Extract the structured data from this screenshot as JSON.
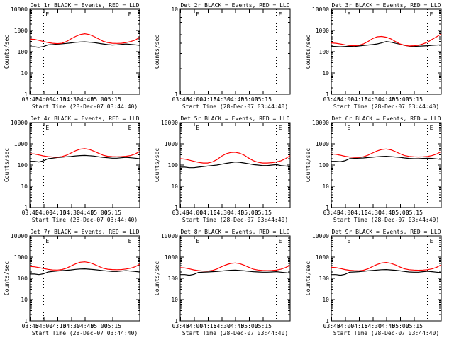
{
  "colors": {
    "events": "#000000",
    "lld": "#ff0000"
  },
  "common": {
    "xlabel": "Start Time (28-Dec-07 03:44:40)",
    "xticks": [
      "03:45",
      "04:00",
      "04:15",
      "04:30",
      "04:45",
      "05:00",
      "05:15"
    ],
    "ylabel": "Counts/sec",
    "event_markers_min": [
      15,
      105
    ],
    "marker_symbol": "E"
  },
  "chart_data": [
    {
      "type": "line",
      "title": "Det 1r BLACK = Events, RED = LLD",
      "ylabel": "Counts/sec",
      "yscale": "log",
      "ylim": [
        1,
        10000
      ],
      "yticks": [
        "1",
        "10",
        "100",
        "1000",
        "10000"
      ],
      "x_min": [
        0,
        5,
        10,
        15,
        20,
        25,
        30,
        35,
        40,
        45,
        50,
        55,
        60,
        65,
        70,
        75,
        80,
        85,
        90,
        95,
        100,
        105,
        110,
        115,
        120
      ],
      "series": [
        {
          "name": "Events",
          "values": [
            170,
            170,
            160,
            175,
            210,
            215,
            225,
            235,
            245,
            260,
            275,
            285,
            290,
            280,
            270,
            250,
            230,
            215,
            205,
            210,
            220,
            230,
            220,
            210,
            200
          ]
        },
        {
          "name": "LLD",
          "values": [
            390,
            380,
            340,
            300,
            270,
            250,
            240,
            250,
            300,
            400,
            520,
            640,
            700,
            640,
            520,
            400,
            310,
            270,
            250,
            245,
            250,
            270,
            300,
            350,
            480
          ]
        }
      ]
    },
    {
      "type": "line",
      "title": "Det 2r BLACK = Events, RED = LLD",
      "ylabel": "Counts/sec",
      "yscale": "log",
      "ylim": [
        1,
        10
      ],
      "yticks": [
        "1",
        "10"
      ],
      "x_min": [],
      "series": []
    },
    {
      "type": "line",
      "title": "Det 3r BLACK = Events, RED = LLD",
      "ylabel": "Counts/sec",
      "yscale": "log",
      "ylim": [
        1,
        10000
      ],
      "yticks": [
        "1",
        "10",
        "100",
        "1000",
        "10000"
      ],
      "x_min": [
        0,
        5,
        10,
        15,
        20,
        25,
        30,
        35,
        40,
        45,
        50,
        55,
        60,
        65,
        70,
        75,
        80,
        85,
        90,
        95,
        100,
        105,
        110,
        115,
        120
      ],
      "series": [
        {
          "name": "Events",
          "values": [
            180,
            175,
            170,
            175,
            180,
            175,
            185,
            195,
            205,
            215,
            230,
            260,
            300,
            280,
            250,
            225,
            200,
            180,
            175,
            180,
            185,
            190,
            200,
            205,
            210
          ]
        },
        {
          "name": "LLD",
          "values": [
            260,
            250,
            230,
            210,
            195,
            190,
            200,
            230,
            300,
            410,
            500,
            520,
            480,
            400,
            300,
            230,
            200,
            185,
            190,
            200,
            230,
            280,
            380,
            500,
            680
          ]
        }
      ]
    },
    {
      "type": "line",
      "title": "Det 4r BLACK = Events, RED = LLD",
      "ylabel": "Counts/sec",
      "yscale": "log",
      "ylim": [
        1,
        10000
      ],
      "yticks": [
        "1",
        "10",
        "100",
        "1000",
        "10000"
      ],
      "x_min": [
        0,
        5,
        10,
        15,
        20,
        25,
        30,
        35,
        40,
        45,
        50,
        55,
        60,
        65,
        70,
        75,
        80,
        85,
        90,
        95,
        100,
        105,
        110,
        115,
        120
      ],
      "series": [
        {
          "name": "Events",
          "values": [
            150,
            150,
            140,
            160,
            200,
            210,
            225,
            235,
            245,
            255,
            270,
            280,
            285,
            275,
            265,
            245,
            230,
            220,
            210,
            210,
            220,
            230,
            220,
            210,
            200
          ]
        },
        {
          "name": "LLD",
          "values": [
            340,
            330,
            300,
            270,
            250,
            240,
            235,
            250,
            290,
            370,
            470,
            560,
            590,
            540,
            450,
            360,
            290,
            260,
            250,
            245,
            250,
            260,
            280,
            330,
            440
          ]
        }
      ]
    },
    {
      "type": "line",
      "title": "Det 5r BLACK = Events, RED = LLD",
      "ylabel": "Counts/sec",
      "yscale": "log",
      "ylim": [
        1,
        10000
      ],
      "yticks": [
        "1",
        "10",
        "100",
        "1000",
        "10000"
      ],
      "x_min": [
        0,
        5,
        10,
        15,
        20,
        25,
        30,
        35,
        40,
        45,
        50,
        55,
        60,
        65,
        70,
        75,
        80,
        85,
        90,
        95,
        100,
        105,
        110,
        115,
        120
      ],
      "series": [
        {
          "name": "Events",
          "values": [
            80,
            80,
            75,
            75,
            80,
            85,
            90,
            95,
            100,
            110,
            120,
            130,
            140,
            135,
            125,
            115,
            105,
            100,
            95,
            95,
            100,
            105,
            95,
            90,
            85
          ]
        },
        {
          "name": "LLD",
          "values": [
            200,
            190,
            170,
            150,
            135,
            125,
            125,
            140,
            180,
            260,
            340,
            390,
            400,
            360,
            290,
            210,
            160,
            135,
            125,
            125,
            130,
            140,
            160,
            200,
            280
          ]
        }
      ]
    },
    {
      "type": "line",
      "title": "Det 6r BLACK = Events, RED = LLD",
      "ylabel": "Counts/sec",
      "yscale": "log",
      "ylim": [
        1,
        10000
      ],
      "yticks": [
        "1",
        "10",
        "100",
        "1000",
        "10000"
      ],
      "x_min": [
        0,
        5,
        10,
        15,
        20,
        25,
        30,
        35,
        40,
        45,
        50,
        55,
        60,
        65,
        70,
        75,
        80,
        85,
        90,
        95,
        100,
        105,
        110,
        115,
        120
      ],
      "series": [
        {
          "name": "Events",
          "values": [
            150,
            150,
            145,
            160,
            200,
            205,
            210,
            215,
            225,
            235,
            245,
            255,
            260,
            250,
            240,
            230,
            215,
            205,
            200,
            200,
            205,
            210,
            205,
            195,
            185
          ]
        },
        {
          "name": "LLD",
          "values": [
            330,
            320,
            290,
            260,
            240,
            230,
            230,
            245,
            290,
            370,
            460,
            540,
            570,
            520,
            430,
            340,
            280,
            255,
            245,
            240,
            245,
            255,
            280,
            330,
            430
          ]
        }
      ]
    },
    {
      "type": "line",
      "title": "Det 7r BLACK = Events, RED = LLD",
      "ylabel": "Counts/sec",
      "yscale": "log",
      "ylim": [
        1,
        10000
      ],
      "yticks": [
        "1",
        "10",
        "100",
        "1000",
        "10000"
      ],
      "x_min": [
        0,
        5,
        10,
        15,
        20,
        25,
        30,
        35,
        40,
        45,
        50,
        55,
        60,
        65,
        70,
        75,
        80,
        85,
        90,
        95,
        100,
        105,
        110,
        115,
        120
      ],
      "series": [
        {
          "name": "Events",
          "values": [
            160,
            160,
            150,
            165,
            200,
            210,
            220,
            230,
            240,
            250,
            265,
            275,
            280,
            270,
            260,
            245,
            230,
            220,
            210,
            210,
            220,
            230,
            220,
            210,
            200
          ]
        },
        {
          "name": "LLD",
          "values": [
            360,
            350,
            320,
            290,
            265,
            250,
            245,
            260,
            300,
            380,
            480,
            570,
            600,
            550,
            460,
            370,
            300,
            270,
            260,
            255,
            260,
            275,
            300,
            350,
            460
          ]
        }
      ]
    },
    {
      "type": "line",
      "title": "Det 8r BLACK = Events, RED = LLD",
      "ylabel": "Counts/sec",
      "yscale": "log",
      "ylim": [
        1,
        10000
      ],
      "yticks": [
        "1",
        "10",
        "100",
        "1000",
        "10000"
      ],
      "x_min": [
        0,
        5,
        10,
        15,
        20,
        25,
        30,
        35,
        40,
        45,
        50,
        55,
        60,
        65,
        70,
        75,
        80,
        85,
        90,
        95,
        100,
        105,
        110,
        115,
        120
      ],
      "series": [
        {
          "name": "Events",
          "values": [
            150,
            150,
            140,
            155,
            190,
            195,
            200,
            205,
            210,
            220,
            230,
            240,
            245,
            235,
            225,
            215,
            205,
            200,
            195,
            195,
            200,
            205,
            195,
            185,
            175
          ]
        },
        {
          "name": "LLD",
          "values": [
            320,
            310,
            280,
            250,
            230,
            220,
            220,
            235,
            275,
            350,
            430,
            500,
            530,
            490,
            410,
            330,
            270,
            245,
            235,
            230,
            235,
            245,
            270,
            320,
            410
          ]
        }
      ]
    },
    {
      "type": "line",
      "title": "Det 9r BLACK = Events, RED = LLD",
      "ylabel": "Counts/sec",
      "yscale": "log",
      "ylim": [
        1,
        10000
      ],
      "yticks": [
        "1",
        "10",
        "100",
        "1000",
        "10000"
      ],
      "x_min": [
        0,
        5,
        10,
        15,
        20,
        25,
        30,
        35,
        40,
        45,
        50,
        55,
        60,
        65,
        70,
        75,
        80,
        85,
        90,
        95,
        100,
        105,
        110,
        115,
        120
      ],
      "series": [
        {
          "name": "Events",
          "values": [
            150,
            150,
            140,
            155,
            195,
            200,
            205,
            215,
            225,
            235,
            245,
            255,
            260,
            250,
            240,
            225,
            210,
            200,
            195,
            195,
            205,
            215,
            205,
            195,
            185
          ]
        },
        {
          "name": "LLD",
          "values": [
            330,
            320,
            290,
            260,
            240,
            230,
            225,
            240,
            280,
            360,
            450,
            530,
            560,
            510,
            430,
            340,
            280,
            255,
            245,
            240,
            245,
            255,
            280,
            330,
            430
          ]
        }
      ]
    }
  ]
}
